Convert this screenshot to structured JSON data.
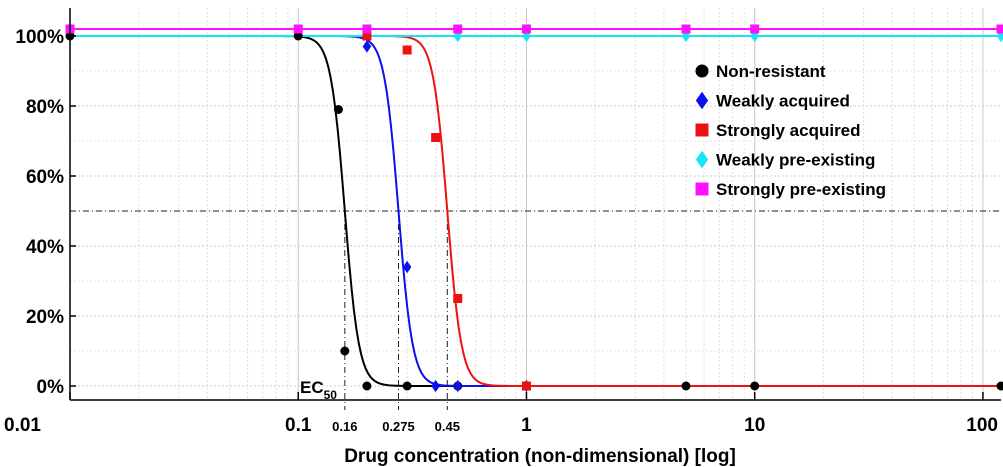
{
  "chart_data": {
    "type": "scatter",
    "xlabel": "Drug concentration (non-dimensional) [log]",
    "ylabel": "",
    "x_scale": "log",
    "xlim": [
      0.01,
      120
    ],
    "ylim": [
      -4,
      105
    ],
    "grid": true,
    "legend_position": "right",
    "x_tick_labels": [
      "0.01",
      "0.1",
      "1",
      "10",
      "100"
    ],
    "x_tick_values": [
      0.01,
      0.1,
      1,
      10,
      100
    ],
    "y_tick_labels": [
      "0%",
      "20%",
      "40%",
      "60%",
      "80%",
      "100%"
    ],
    "y_tick_values": [
      0,
      20,
      40,
      60,
      80,
      100
    ],
    "ec50": {
      "label_main": "EC",
      "label_sub": "50",
      "level": 50,
      "markers": [
        {
          "x": 0.16,
          "label": "0.16"
        },
        {
          "x": 0.275,
          "label": "0.275"
        },
        {
          "x": 0.45,
          "label": "0.45"
        }
      ]
    },
    "series": [
      {
        "name": "Non-resistant",
        "marker": "circle",
        "color": "#000000",
        "points": [
          [
            0.01,
            100
          ],
          [
            0.1,
            100
          ],
          [
            0.15,
            79
          ],
          [
            0.16,
            10
          ],
          [
            0.2,
            0
          ],
          [
            0.3,
            0
          ],
          [
            0.5,
            0
          ],
          [
            1,
            0
          ],
          [
            5,
            0
          ],
          [
            10,
            0
          ],
          [
            120,
            0
          ]
        ],
        "curve": {
          "ec50": 0.16,
          "hill": 14
        }
      },
      {
        "name": "Weakly acquired",
        "marker": "diamond",
        "color": "#0a10ee",
        "points": [
          [
            0.2,
            97
          ],
          [
            0.3,
            34
          ],
          [
            0.4,
            0
          ],
          [
            0.5,
            0
          ],
          [
            1,
            0
          ]
        ],
        "curve": {
          "ec50": 0.275,
          "hill": 14
        }
      },
      {
        "name": "Strongly acquired",
        "marker": "square",
        "color": "#ee1111",
        "points": [
          [
            0.2,
            100
          ],
          [
            0.3,
            96
          ],
          [
            0.4,
            71
          ],
          [
            0.5,
            25
          ],
          [
            1,
            0
          ]
        ],
        "curve": {
          "ec50": 0.45,
          "hill": 14
        }
      },
      {
        "name": "Weakly pre-existing",
        "marker": "diamond",
        "color": "#16e6f2",
        "points": [
          [
            0.5,
            100
          ],
          [
            1,
            100
          ],
          [
            5,
            100
          ],
          [
            10,
            100
          ],
          [
            120,
            100
          ]
        ],
        "curve": {
          "constant": 100
        }
      },
      {
        "name": "Strongly pre-existing",
        "marker": "square",
        "color": "#ff10ff",
        "points": [
          [
            0.01,
            102
          ],
          [
            0.1,
            102
          ],
          [
            0.2,
            102
          ],
          [
            0.5,
            102
          ],
          [
            1,
            102
          ],
          [
            5,
            102
          ],
          [
            10,
            102
          ],
          [
            120,
            102
          ]
        ],
        "curve": {
          "constant": 102
        }
      }
    ]
  }
}
